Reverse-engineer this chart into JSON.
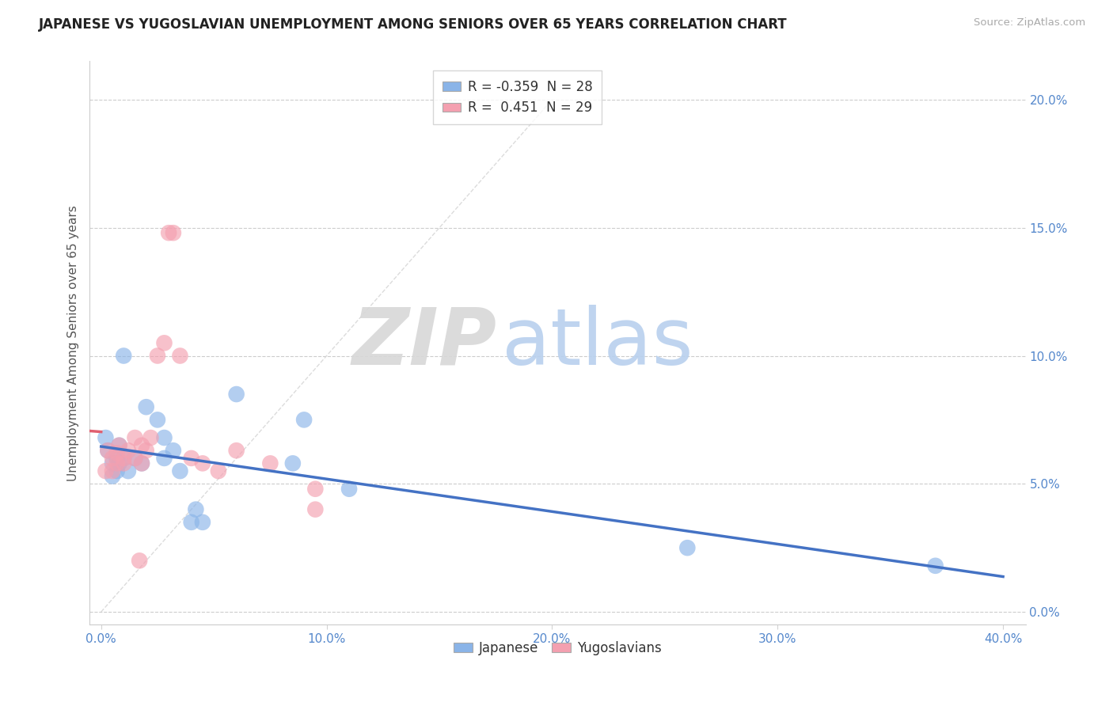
{
  "title": "JAPANESE VS YUGOSLAVIAN UNEMPLOYMENT AMONG SENIORS OVER 65 YEARS CORRELATION CHART",
  "source": "Source: ZipAtlas.com",
  "ylabel": "Unemployment Among Seniors over 65 years",
  "xlabel_ticks": [
    "0.0%",
    "10.0%",
    "20.0%",
    "30.0%",
    "40.0%"
  ],
  "xlabel_vals": [
    0.0,
    0.1,
    0.2,
    0.3,
    0.4
  ],
  "ylabel_ticks": [
    "0.0%",
    "5.0%",
    "10.0%",
    "15.0%",
    "20.0%"
  ],
  "ylabel_vals": [
    0.0,
    0.05,
    0.1,
    0.15,
    0.2
  ],
  "xlim": [
    -0.005,
    0.41
  ],
  "ylim": [
    -0.005,
    0.215
  ],
  "legend_japanese_R": "-0.359",
  "legend_japanese_N": "28",
  "legend_yugoslav_R": "0.451",
  "legend_yugoslav_N": "29",
  "japanese_color": "#8ab4e8",
  "yugoslav_color": "#f4a0b0",
  "japanese_line_color": "#4472c4",
  "yugoslav_line_color": "#e06070",
  "japanese_points": [
    [
      0.002,
      0.068
    ],
    [
      0.003,
      0.063
    ],
    [
      0.005,
      0.058
    ],
    [
      0.005,
      0.053
    ],
    [
      0.007,
      0.06
    ],
    [
      0.007,
      0.055
    ],
    [
      0.008,
      0.065
    ],
    [
      0.008,
      0.058
    ],
    [
      0.01,
      0.06
    ],
    [
      0.01,
      0.1
    ],
    [
      0.012,
      0.055
    ],
    [
      0.015,
      0.06
    ],
    [
      0.018,
      0.058
    ],
    [
      0.02,
      0.08
    ],
    [
      0.025,
      0.075
    ],
    [
      0.028,
      0.068
    ],
    [
      0.028,
      0.06
    ],
    [
      0.032,
      0.063
    ],
    [
      0.035,
      0.055
    ],
    [
      0.04,
      0.035
    ],
    [
      0.042,
      0.04
    ],
    [
      0.045,
      0.035
    ],
    [
      0.06,
      0.085
    ],
    [
      0.085,
      0.058
    ],
    [
      0.09,
      0.075
    ],
    [
      0.11,
      0.048
    ],
    [
      0.26,
      0.025
    ],
    [
      0.37,
      0.018
    ]
  ],
  "yugoslav_points": [
    [
      0.002,
      0.055
    ],
    [
      0.003,
      0.063
    ],
    [
      0.005,
      0.06
    ],
    [
      0.005,
      0.055
    ],
    [
      0.007,
      0.062
    ],
    [
      0.007,
      0.058
    ],
    [
      0.008,
      0.065
    ],
    [
      0.01,
      0.06
    ],
    [
      0.01,
      0.058
    ],
    [
      0.012,
      0.063
    ],
    [
      0.015,
      0.068
    ],
    [
      0.015,
      0.06
    ],
    [
      0.018,
      0.065
    ],
    [
      0.018,
      0.058
    ],
    [
      0.02,
      0.063
    ],
    [
      0.022,
      0.068
    ],
    [
      0.025,
      0.1
    ],
    [
      0.028,
      0.105
    ],
    [
      0.03,
      0.148
    ],
    [
      0.032,
      0.148
    ],
    [
      0.035,
      0.1
    ],
    [
      0.04,
      0.06
    ],
    [
      0.045,
      0.058
    ],
    [
      0.052,
      0.055
    ],
    [
      0.06,
      0.063
    ],
    [
      0.075,
      0.058
    ],
    [
      0.095,
      0.048
    ],
    [
      0.095,
      0.04
    ],
    [
      0.017,
      0.02
    ]
  ]
}
